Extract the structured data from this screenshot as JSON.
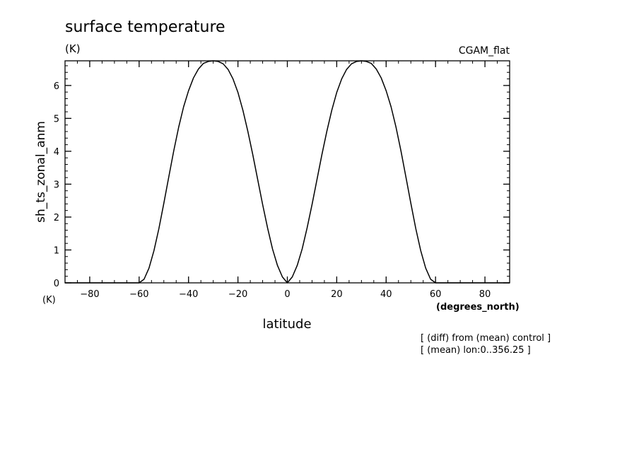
{
  "chart_data": {
    "type": "line",
    "title": "surface temperature",
    "units_label": "(K)",
    "dataset_label": "CGAM_flat",
    "ylabel": "sh_ts_zonal_anm",
    "xlabel": "latitude",
    "xunits": "(degrees_north)",
    "yunits_bottom": "(K)",
    "notes": [
      "[ (diff) from (mean) control ]",
      "[ (mean) lon:0..356.25 ]"
    ],
    "xlim": [
      -90,
      90
    ],
    "ylim": [
      0,
      6.75
    ],
    "xticks": [
      -80,
      -60,
      -40,
      -20,
      0,
      20,
      40,
      60,
      80
    ],
    "yticks": [
      0,
      1,
      2,
      3,
      4,
      5,
      6
    ],
    "grid": false,
    "series": [
      {
        "color": "#000000",
        "x": [
          -90,
          -80,
          -70,
          -62,
          -60,
          -58,
          -56,
          -54,
          -52,
          -50,
          -48,
          -46,
          -44,
          -42,
          -40,
          -38,
          -36,
          -34,
          -32,
          -30,
          -28,
          -26,
          -24,
          -22,
          -20,
          -18,
          -16,
          -14,
          -12,
          -10,
          -8,
          -6,
          -4,
          -2,
          0,
          2,
          4,
          6,
          8,
          10,
          12,
          14,
          16,
          18,
          20,
          22,
          24,
          26,
          28,
          30,
          32,
          34,
          36,
          38,
          40,
          42,
          44,
          46,
          48,
          50,
          52,
          54,
          56,
          58,
          60,
          62,
          70,
          80,
          90
        ],
        "y": [
          0,
          0,
          0,
          0,
          0.0,
          0.11,
          0.45,
          0.98,
          1.65,
          2.42,
          3.22,
          4.01,
          4.73,
          5.35,
          5.84,
          6.23,
          6.5,
          6.67,
          6.73,
          6.75,
          6.73,
          6.66,
          6.49,
          6.2,
          5.79,
          5.25,
          4.61,
          3.9,
          3.14,
          2.38,
          1.67,
          1.03,
          0.53,
          0.18,
          0.0,
          0.18,
          0.53,
          1.03,
          1.67,
          2.38,
          3.14,
          3.9,
          4.61,
          5.25,
          5.79,
          6.2,
          6.49,
          6.66,
          6.73,
          6.75,
          6.73,
          6.67,
          6.5,
          6.23,
          5.84,
          5.35,
          4.73,
          4.01,
          3.22,
          2.42,
          1.65,
          0.98,
          0.45,
          0.11,
          0.0,
          0,
          0,
          0,
          0
        ]
      }
    ]
  }
}
